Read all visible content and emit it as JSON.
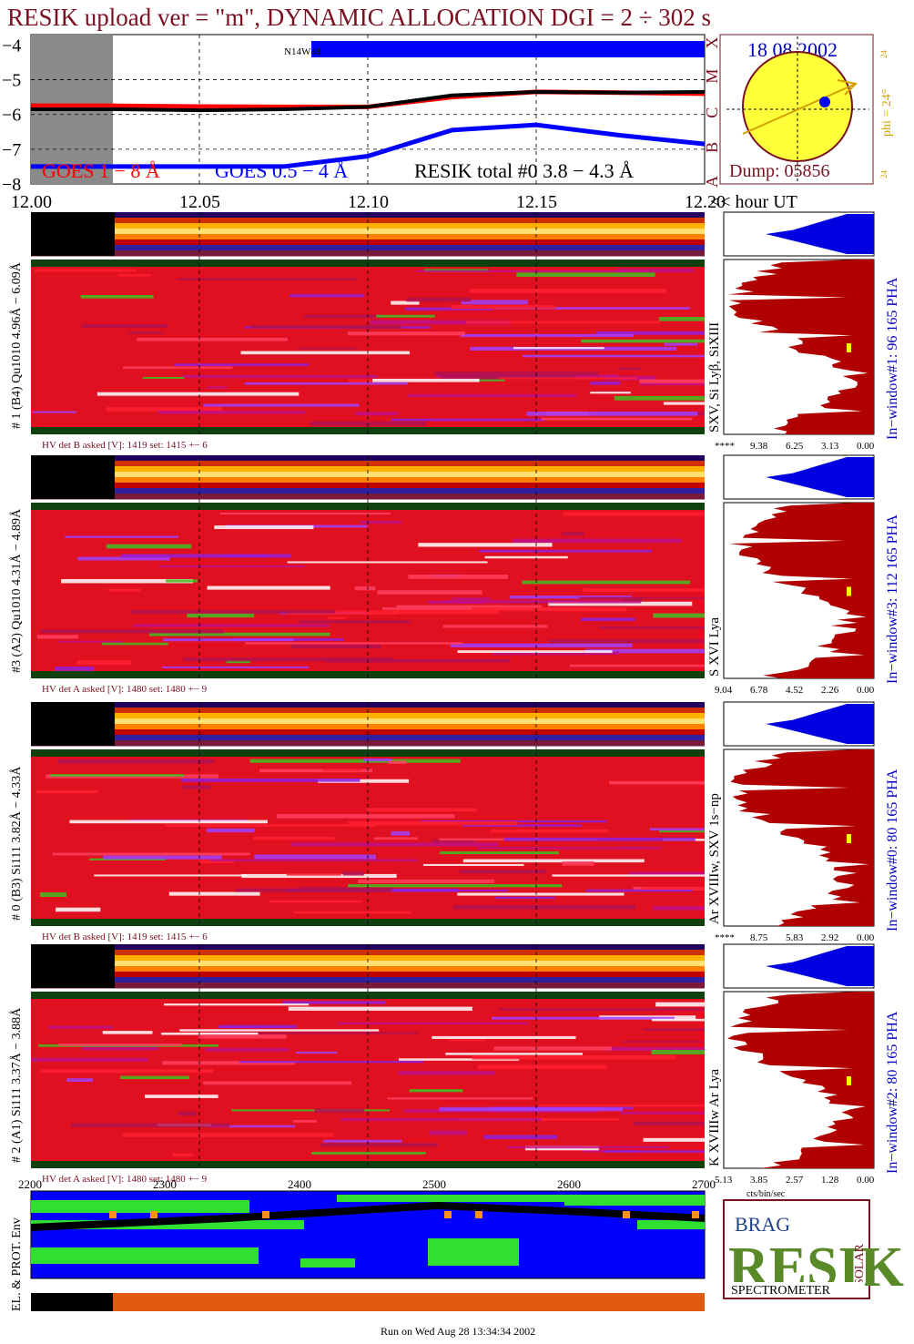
{
  "title": "RESIK upload ver = \"m\", DYNAMIC ALLOCATION  DGI =   2 ÷ 302 s",
  "colors": {
    "title": "#7a1020",
    "goes_long": "#ff0000",
    "goes_short": "#0000ff",
    "resik_total": "#000000",
    "spectrum_fill": "#b00000",
    "pha_fill": "#0000e0",
    "sun_disc": "#ffff3a",
    "phi_label": "#d4a000",
    "blue_text": "#0000c0",
    "dark_text": "#7a1020"
  },
  "time_axis": {
    "ticks": [
      "12.00",
      "12.05",
      "12.10",
      "12.15",
      "12.20"
    ],
    "unit_label": "<< hour UT"
  },
  "goes_panel": {
    "ylabels": [
      "−4",
      "−5",
      "−6",
      "−7",
      "−8"
    ],
    "class_labels": [
      "X",
      "M",
      "C",
      "B",
      "A"
    ],
    "legend_goes_long": "GOES 1 − 8 Å",
    "legend_goes_short": "GOES 0.5 − 4 Å",
    "legend_resik": "RESIK total #0  3.8 − 4.3 Å",
    "bar_label": "N14W48"
  },
  "sun_panel": {
    "date": "18 08 2002",
    "dump": "Dump: 05856",
    "phi": "phi = 24°",
    "phi_top": "24",
    "phi_bottom": "24"
  },
  "channels": [
    {
      "side_label": "# 1 (B4) Qu1010 4.96Å − 6.09Å",
      "lines_label": "SXV, Si Lyβ, SiXIII",
      "window_label": "In−window#1:   96 165  PHA",
      "hv_label": "HV det B asked [V]:  1419 set:  1415  +−    6",
      "axis_ticks": [
        "****",
        "9.38",
        "6.25",
        "3.13",
        "0.00"
      ]
    },
    {
      "side_label": "#3 (A2) Qu1010  4.31Å − 4.89Å",
      "lines_label": "S XVI Lya",
      "window_label": "In−window#3:  112 165  PHA",
      "hv_label": "HV det A asked [V]:  1480 set:  1480  +−    9",
      "axis_ticks": [
        "9.04",
        "6.78",
        "4.52",
        "2.26",
        "0.00"
      ]
    },
    {
      "side_label": "# 0 (B3) Si111  3.82Å − 4.33Å",
      "lines_label": "Ar XVIIIw,  SXV 1s−np",
      "window_label": "In−window#0:   80 165  PHA",
      "hv_label": "HV det B asked [V]:  1419 set:  1415  +−    6",
      "axis_ticks": [
        "****",
        "8.75",
        "5.83",
        "2.92",
        "0.00"
      ]
    },
    {
      "side_label": "# 2 (A1) Si111  3.37Å − 3.88Å",
      "lines_label": "K XVIIIw   Ar Lya",
      "window_label": "In−window#2:   80 165  PHA",
      "hv_label": "HV det A asked [V]:  1480 set:  1480  +−    9",
      "axis_ticks": [
        "5.13",
        "3.85",
        "2.57",
        "1.28",
        "0.00"
      ]
    }
  ],
  "rate_axis_label": "cts/bin/sec",
  "orbit": {
    "ticks": [
      "2200",
      "2300",
      "2400",
      "2500",
      "2600",
      "2700"
    ],
    "side_label": "EL. & PROT. Env"
  },
  "footer": "Run on Wed Aug 28 13:34:34 2002",
  "logo": {
    "text": "RESIK",
    "sub_left": "BRAG",
    "sub_right": "SOLAR",
    "caption": "SPECTROMETER"
  },
  "chart_data": {
    "type": "line",
    "title": "RESIK upload ver = \"m\", DYNAMIC ALLOCATION  DGI =   2 ÷ 302 s",
    "xlabel": "hour UT",
    "ylabel": "",
    "xlim": [
      12.0,
      12.2
    ],
    "ylim": [
      -8,
      -3.7
    ],
    "x": [
      12.0,
      12.025,
      12.05,
      12.075,
      12.1,
      12.125,
      12.15,
      12.175,
      12.2
    ],
    "series": [
      {
        "name": "GOES 1 − 8 Å",
        "values": [
          -5.75,
          -5.75,
          -5.77,
          -5.78,
          -5.78,
          -5.5,
          -5.35,
          -5.37,
          -5.4
        ]
      },
      {
        "name": "GOES 0.5 − 4 Å",
        "values": [
          -7.5,
          -7.5,
          -7.5,
          -7.5,
          -7.2,
          -6.45,
          -6.3,
          -6.6,
          -6.85
        ]
      },
      {
        "name": "RESIK total #0  3.8 − 4.3 Å",
        "values": [
          -5.85,
          -5.85,
          -5.88,
          -5.85,
          -5.78,
          -5.45,
          -5.35,
          -5.37,
          -5.35
        ]
      }
    ],
    "grid": true,
    "legend": "bottom"
  }
}
